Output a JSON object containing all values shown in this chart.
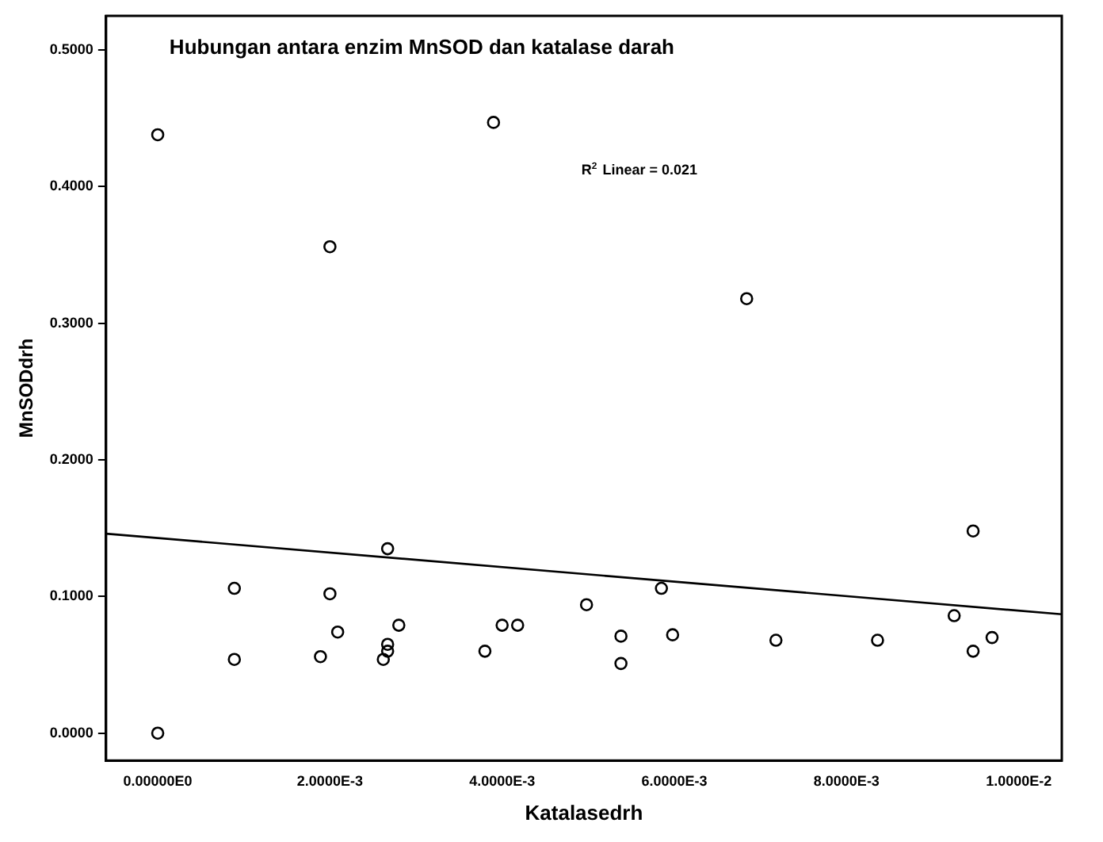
{
  "chart_data": {
    "type": "scatter",
    "title": "Hubungan antara enzim MnSOD dan katalase darah",
    "xlabel": "Katalasedrh",
    "ylabel": "MnSODdrh",
    "annotations": [
      "R$^{2}$ Linear = 0.021"
    ],
    "xlim": [
      -0.0006,
      0.0105
    ],
    "ylim": [
      -0.02,
      0.525
    ],
    "xticks": [
      {
        "value": 0,
        "label": "0.00000E0"
      },
      {
        "value": 0.002,
        "label": "2.0000E-3"
      },
      {
        "value": 0.004,
        "label": "4.0000E-3"
      },
      {
        "value": 0.006,
        "label": "6.0000E-3"
      },
      {
        "value": 0.008,
        "label": "8.0000E-3"
      },
      {
        "value": 0.01,
        "label": "1.0000E-2"
      }
    ],
    "yticks": [
      {
        "value": 0,
        "label": "0.0000"
      },
      {
        "value": 0.1,
        "label": "0.1000"
      },
      {
        "value": 0.2,
        "label": "0.2000"
      },
      {
        "value": 0.3,
        "label": "0.3000"
      },
      {
        "value": 0.4,
        "label": "0.4000"
      },
      {
        "value": 0.5,
        "label": "0.5000"
      }
    ],
    "grid": false,
    "legend": false,
    "marker": "circle",
    "series": [
      {
        "type": "scatter",
        "color": "#000000",
        "x": [
          0,
          0,
          0.00089,
          0.00089,
          0.00189,
          0.002,
          0.002,
          0.00209,
          0.00262,
          0.00267,
          0.00267,
          0.00267,
          0.0028,
          0.0038,
          0.0039,
          0.004,
          0.00418,
          0.00498,
          0.00538,
          0.00538,
          0.00585,
          0.00598,
          0.00684,
          0.00718,
          0.00836,
          0.00925,
          0.00947,
          0.00947,
          0.00969
        ],
        "values": [
          0.438,
          0.0,
          0.106,
          0.054,
          0.056,
          0.356,
          0.102,
          0.074,
          0.054,
          0.135,
          0.065,
          0.06,
          0.079,
          0.06,
          0.447,
          0.079,
          0.079,
          0.094,
          0.071,
          0.051,
          0.106,
          0.072,
          0.318,
          0.068,
          0.068,
          0.086,
          0.148,
          0.06,
          0.07
        ]
      },
      {
        "type": "line",
        "color": "#000000",
        "marker": "none",
        "x": [
          -0.0006,
          0.0105
        ],
        "values": [
          0.146,
          0.087
        ]
      }
    ]
  }
}
